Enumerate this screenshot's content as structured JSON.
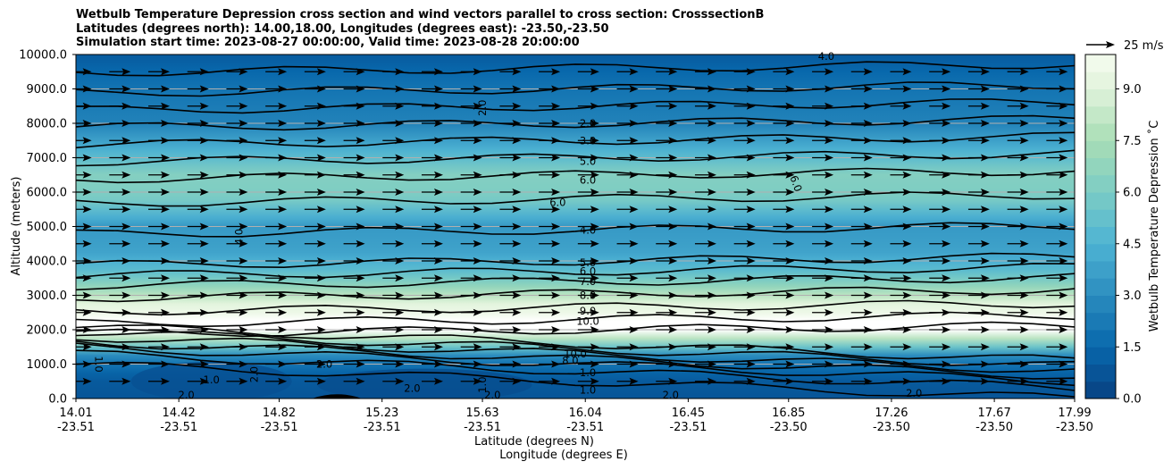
{
  "chart_data": {
    "type": "contour",
    "title_lines": [
      "Wetbulb Temperature Depression cross section and wind vectors parallel to cross section: CrosssectionB",
      "Latitudes (degrees north): 14.00,18.00, Longitudes (degrees east): -23.50,-23.50",
      "Simulation start time: 2023-08-27 00:00:00, Valid time: 2023-08-28 20:00:00"
    ],
    "ylabel": "Altitude (meters)",
    "xlabel_lat": "Latitude (degrees N)",
    "xlabel_lon": "Longitude (degrees E)",
    "ylim": [
      0,
      10000
    ],
    "yticks": [
      "0.0",
      "1000.0",
      "2000.0",
      "3000.0",
      "4000.0",
      "5000.0",
      "6000.0",
      "7000.0",
      "8000.0",
      "9000.0",
      "10000.0"
    ],
    "xticks": [
      {
        "lat": "14.01",
        "lon": "-23.51"
      },
      {
        "lat": "14.42",
        "lon": "-23.51"
      },
      {
        "lat": "14.82",
        "lon": "-23.51"
      },
      {
        "lat": "15.23",
        "lon": "-23.51"
      },
      {
        "lat": "15.63",
        "lon": "-23.51"
      },
      {
        "lat": "16.04",
        "lon": "-23.51"
      },
      {
        "lat": "16.45",
        "lon": "-23.51"
      },
      {
        "lat": "16.85",
        "lon": "-23.50"
      },
      {
        "lat": "17.26",
        "lon": "-23.50"
      },
      {
        "lat": "17.67",
        "lon": "-23.50"
      },
      {
        "lat": "17.99",
        "lon": "-23.50"
      }
    ],
    "colorbar": {
      "label": "Wetbulb Temperature Depression ˚C",
      "ticks": [
        "0.0",
        "1.5",
        "3.0",
        "4.5",
        "6.0",
        "7.5",
        "9.0"
      ],
      "range": [
        0,
        10
      ]
    },
    "quiver_key": "25 m/s",
    "field_profile": [
      {
        "alt": 0,
        "value": 0.8
      },
      {
        "alt": 600,
        "value": 1.0
      },
      {
        "alt": 1200,
        "value": 2.5
      },
      {
        "alt": 2000,
        "value": 10.5
      },
      {
        "alt": 2800,
        "value": 9.0
      },
      {
        "alt": 3200,
        "value": 7.0
      },
      {
        "alt": 3700,
        "value": 5.0
      },
      {
        "alt": 4300,
        "value": 3.8
      },
      {
        "alt": 5000,
        "value": 3.5
      },
      {
        "alt": 5800,
        "value": 6.0
      },
      {
        "alt": 6500,
        "value": 6.3
      },
      {
        "alt": 7200,
        "value": 4.5
      },
      {
        "alt": 8000,
        "value": 2.6
      },
      {
        "alt": 9000,
        "value": 2.0
      },
      {
        "alt": 10000,
        "value": 1.0
      }
    ],
    "contour_labels": [
      {
        "text": "4.0",
        "alt": 9950,
        "lat": 17.0
      },
      {
        "text": "2.0",
        "alt": 8450,
        "lat": 15.63,
        "rot": -90
      },
      {
        "text": "2.0",
        "alt": 8000,
        "lat": 16.05
      },
      {
        "text": "3.0",
        "alt": 7500,
        "lat": 16.05
      },
      {
        "text": "5.0",
        "alt": 6900,
        "lat": 16.05
      },
      {
        "text": "6.0",
        "alt": 6350,
        "lat": 16.05
      },
      {
        "text": "6.0",
        "alt": 5700,
        "lat": 15.93
      },
      {
        "text": "6.0",
        "alt": 6250,
        "lat": 16.88,
        "rot": 70
      },
      {
        "text": "4.0",
        "alt": 4900,
        "lat": 16.05
      },
      {
        "text": "4.0",
        "alt": 4700,
        "lat": 14.66,
        "rot": -90
      },
      {
        "text": "5.0",
        "alt": 3950,
        "lat": 16.05
      },
      {
        "text": "6.0",
        "alt": 3700,
        "lat": 16.05
      },
      {
        "text": "7.0",
        "alt": 3400,
        "lat": 16.05
      },
      {
        "text": "8.0",
        "alt": 3000,
        "lat": 16.05
      },
      {
        "text": "9.0",
        "alt": 2550,
        "lat": 16.05
      },
      {
        "text": "10.0",
        "alt": 2250,
        "lat": 16.05
      },
      {
        "text": "10.0",
        "alt": 1300,
        "lat": 16.0
      },
      {
        "text": "8.0",
        "alt": 1100,
        "lat": 15.98
      },
      {
        "text": "1.0",
        "alt": 750,
        "lat": 16.05
      },
      {
        "text": "1.0",
        "alt": 250,
        "lat": 16.05
      },
      {
        "text": "2.0",
        "alt": 100,
        "lat": 16.38
      },
      {
        "text": "2.0",
        "alt": 150,
        "lat": 17.35
      },
      {
        "text": "1.0",
        "alt": 1000,
        "lat": 14.1,
        "rot": 90
      },
      {
        "text": "2.0",
        "alt": 100,
        "lat": 14.45
      },
      {
        "text": "1.0",
        "alt": 550,
        "lat": 14.55
      },
      {
        "text": "2.0",
        "alt": 700,
        "lat": 14.72,
        "rot": -90
      },
      {
        "text": "2.0",
        "alt": 300,
        "lat": 15.35
      },
      {
        "text": "1.0",
        "alt": 400,
        "lat": 15.63,
        "rot": -90
      },
      {
        "text": "2.0",
        "alt": 100,
        "lat": 15.67
      },
      {
        "text": "2.0",
        "alt": 1000,
        "lat": 15.0
      }
    ],
    "colors": {
      "low": "#08519c",
      "mid": "#4eb3d3",
      "high": "#a8ddb5",
      "top": "#f7fcf0"
    }
  }
}
